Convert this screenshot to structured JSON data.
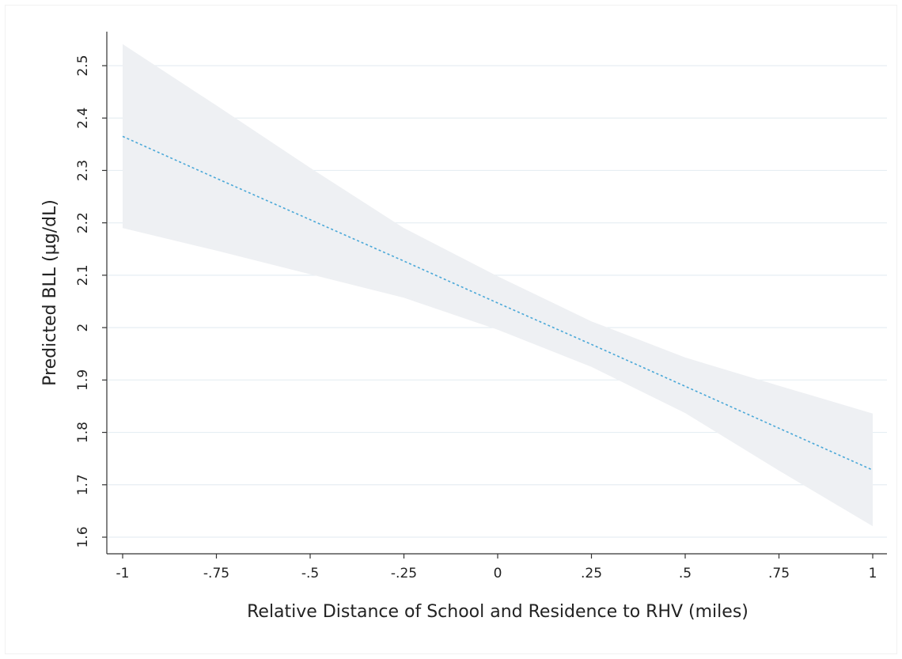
{
  "chart_data": {
    "type": "line",
    "title": "",
    "xlabel": "Relative Distance of School and Residence to RHV (miles)",
    "ylabel": "Predicted BLL (µg/dL)",
    "xlim": [
      -1.04,
      1.04
    ],
    "ylim": [
      1.595,
      2.545
    ],
    "x_ticks": [
      {
        "value": -1,
        "label": "-1"
      },
      {
        "value": -0.75,
        "label": "-.75"
      },
      {
        "value": -0.5,
        "label": "-.5"
      },
      {
        "value": -0.25,
        "label": "-.25"
      },
      {
        "value": 0,
        "label": "0"
      },
      {
        "value": 0.25,
        "label": ".25"
      },
      {
        "value": 0.5,
        "label": ".5"
      },
      {
        "value": 0.75,
        "label": ".75"
      },
      {
        "value": 1,
        "label": "1"
      }
    ],
    "y_ticks": [
      {
        "value": 1.6,
        "label": "1.6"
      },
      {
        "value": 1.7,
        "label": "1.7"
      },
      {
        "value": 1.8,
        "label": "1.8"
      },
      {
        "value": 1.9,
        "label": "1.9"
      },
      {
        "value": 2.0,
        "label": "2"
      },
      {
        "value": 2.1,
        "label": "2.1"
      },
      {
        "value": 2.2,
        "label": "2.2"
      },
      {
        "value": 2.3,
        "label": "2.3"
      },
      {
        "value": 2.4,
        "label": "2.4"
      },
      {
        "value": 2.5,
        "label": "2.5"
      }
    ],
    "grid": "horizontal",
    "series": [
      {
        "x": [
          -1,
          -0.75,
          -0.5,
          -0.25,
          0,
          0.25,
          0.5,
          0.75,
          1
        ],
        "values": [
          2.365,
          2.285,
          2.206,
          2.127,
          2.047,
          1.968,
          1.888,
          1.808,
          1.728
        ],
        "ci_upper": [
          2.541,
          2.424,
          2.305,
          2.19,
          2.098,
          2.012,
          1.943,
          1.889,
          1.836
        ],
        "ci_lower": [
          2.19,
          2.147,
          2.102,
          2.057,
          1.996,
          1.925,
          1.837,
          1.727,
          1.621
        ],
        "color": "#4aa8d8",
        "ci_color": "#eef0f3"
      }
    ],
    "colors": {
      "grid": "#e6eef3",
      "axis": "#333333",
      "background": "#ffffff",
      "frame": "#f2f2f2"
    }
  }
}
